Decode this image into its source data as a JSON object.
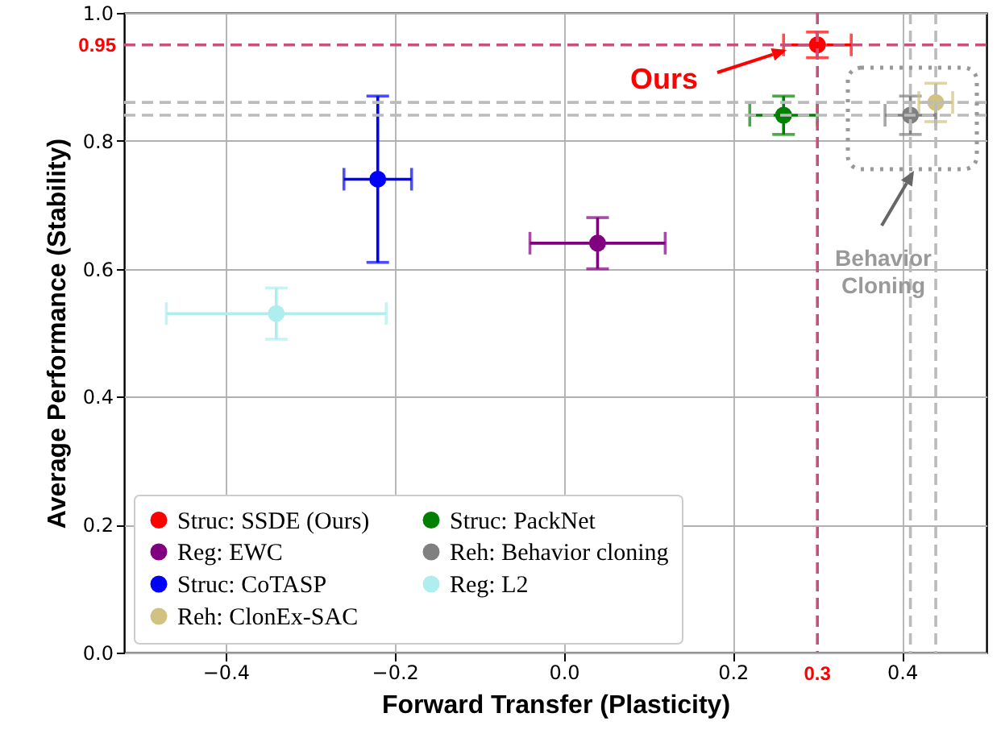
{
  "chart_data": {
    "type": "scatter",
    "xlabel": "Forward Transfer (Plasticity)",
    "ylabel": "Average Performance (Stability)",
    "xlim": [
      -0.52,
      0.5
    ],
    "ylim": [
      0,
      1
    ],
    "xticks": [
      {
        "value": -0.4,
        "label": "−0.4"
      },
      {
        "value": -0.2,
        "label": "−0.2"
      },
      {
        "value": 0,
        "label": "0.0"
      },
      {
        "value": 0.2,
        "label": "0.2"
      },
      {
        "value": 0.4,
        "label": "0.4"
      }
    ],
    "yticks": [
      {
        "value": 0,
        "label": "0.0"
      },
      {
        "value": 0.2,
        "label": "0.2"
      },
      {
        "value": 0.4,
        "label": "0.4"
      },
      {
        "value": 0.6,
        "label": "0.6"
      },
      {
        "value": 0.8,
        "label": "0.8"
      },
      {
        "value": 1,
        "label": "1.0"
      }
    ],
    "grid": true,
    "legend": "bottom left",
    "marker": "circle",
    "series": [
      {
        "name": "Struc: SSDE (Ours)",
        "color": "#ff0000",
        "x": [
          0.3
        ],
        "values": [
          0.95
        ],
        "errors": [
          0.02
        ],
        "xerrors": [
          0.04
        ]
      },
      {
        "name": "Struc: CoTASP",
        "color": "#0000ff",
        "x": [
          -0.22
        ],
        "values": [
          0.74
        ],
        "errors": [
          0.13
        ],
        "xerrors": [
          0.04
        ]
      },
      {
        "name": "Struc: PackNet",
        "color": "#008000",
        "x": [
          0.26
        ],
        "values": [
          0.84
        ],
        "errors": [
          0.03
        ],
        "xerrors": [
          0.04
        ]
      },
      {
        "name": "Reg: L2",
        "color": "#afeeee",
        "x": [
          -0.34
        ],
        "values": [
          0.53
        ],
        "errors": [
          0.04
        ],
        "xerrors": [
          0.13
        ]
      },
      {
        "name": "Reg: EWC",
        "color": "#800080",
        "x": [
          0.04
        ],
        "values": [
          0.64
        ],
        "errors": [
          0.04
        ],
        "xerrors": [
          0.08
        ]
      },
      {
        "name": "Reh: ClonEx-SAC",
        "color": "#d2c281",
        "x": [
          0.44
        ],
        "values": [
          0.86
        ],
        "errors": [
          0.03
        ],
        "xerrors": [
          0.02
        ]
      },
      {
        "name": "Reh: Behavior cloning",
        "color": "#808080",
        "x": [
          0.41
        ],
        "values": [
          0.84
        ],
        "errors": [
          0.03
        ],
        "xerrors": [
          0.03
        ]
      }
    ],
    "ref_lines": [
      {
        "axis": "y",
        "value": 0.95,
        "label": "0.95",
        "color": "#c8507a",
        "line_style": "dashed"
      },
      {
        "axis": "x",
        "value": 0.3,
        "label": "0.3",
        "color": "#c8507a",
        "line_style": "dashed"
      },
      {
        "axis": "y",
        "value": 0.86,
        "color": "#bbbbbb",
        "line_style": "dashed"
      },
      {
        "axis": "y",
        "value": 0.84,
        "color": "#bbbbbb",
        "line_style": "dashed"
      },
      {
        "axis": "x",
        "value": 0.41,
        "color": "#bbbbbb",
        "line_style": "dashed"
      },
      {
        "axis": "x",
        "value": 0.44,
        "color": "#bbbbbb",
        "line_style": "dashed"
      }
    ],
    "annotations": [
      "Ours",
      "Behavior Cloning"
    ]
  }
}
